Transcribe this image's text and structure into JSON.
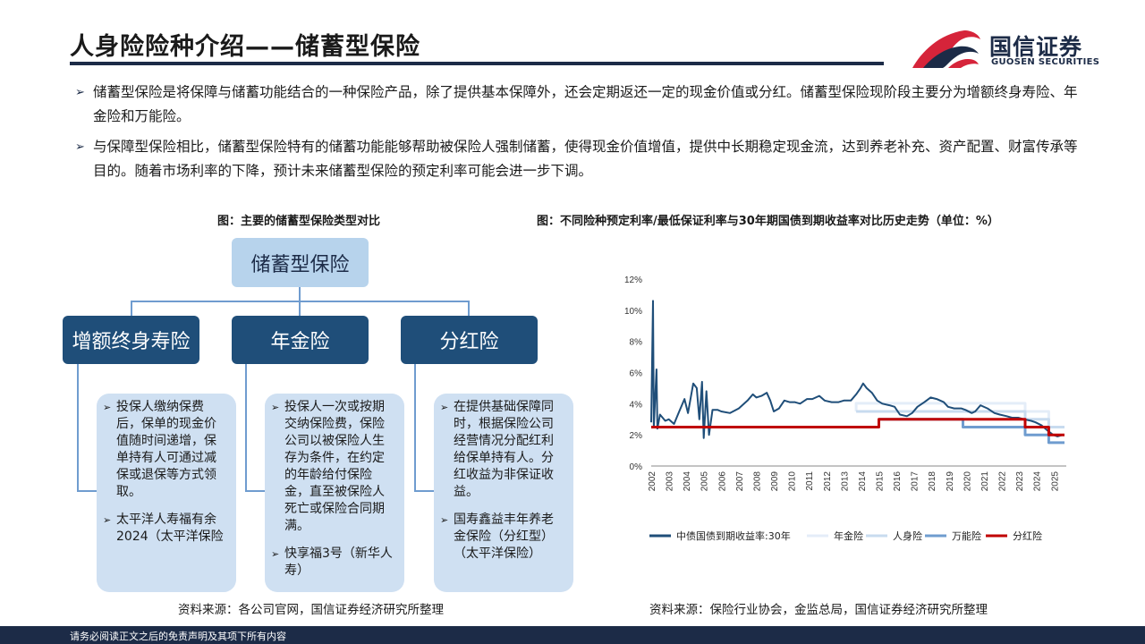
{
  "header": {
    "title": "人身险险种介绍——储蓄型保险",
    "logo_name": "国信证券",
    "logo_en": "GUOSEN SECURITIES"
  },
  "bullets": [
    "储蓄型保险是将保障与储蓄功能结合的一种保险产品，除了提供基本保障外，还会定期返还一定的现金价值或分红。储蓄型保险现阶段主要分为增额终身寿险、年金险和万能险。",
    "与保障型保险相比，储蓄型保险特有的储蓄功能能够帮助被保险人强制储蓄，使得现金价值增值，提供中长期稳定现金流，达到养老补充、资产配置、财富传承等目的。随着市场利率的下降，预计未来储蓄型保险的预定利率可能会进一步下调。"
  ],
  "left_figure": {
    "caption": "图：主要的储蓄型保险类型对比",
    "root": "储蓄型保险",
    "categories": [
      {
        "label": "增额终身寿险",
        "items": [
          "投保人缴纳保费后，保单的现金价值随时间递增，保单持有人可通过减保或退保等方式领取。",
          "太平洋人寿福有余2024（太平洋保险"
        ]
      },
      {
        "label": "年金险",
        "items": [
          "投保人一次或按期交纳保险费，保险公司以被保险人生存为条件，在约定的年龄给付保险金，直至被保险人死亡或保险合同期满。",
          "快享福3号（新华人寿）"
        ]
      },
      {
        "label": "分红险",
        "items": [
          "在提供基础保障同时，根据保险公司经营情况分配红利给保单持有人。分红收益为非保证收益。",
          "国寿鑫益丰年养老金保险（分红型）（太平洋保险）"
        ]
      }
    ],
    "source": "资料来源：各公司官网，国信证券经济研究所整理"
  },
  "right_figure": {
    "caption": "图：不同险种预定利率/最低保证利率与30年期国债到期收益率对比历史走势（单位：%）",
    "source": "资料来源：保险行业协会，金监总局，国信证券经济研究所整理"
  },
  "footer": {
    "disclaimer": "请务必阅读正文之后的免责声明及其项下所有内容"
  },
  "colors": {
    "navy": "#1c2b47",
    "brand_red": "#d6243a",
    "bond": "#1f4e79",
    "annuity": "#e4edf8",
    "life": "#c8dbef",
    "universal": "#6f9ccf",
    "dividend": "#c00000"
  },
  "chart_data": {
    "type": "line",
    "title": "",
    "xlabel": "",
    "ylabel": "",
    "x_ticks": [
      "2002",
      "2003",
      "2004",
      "2005",
      "2006",
      "2007",
      "2008",
      "2009",
      "2010",
      "2011",
      "2012",
      "2013",
      "2014",
      "2015",
      "2016",
      "2017",
      "2018",
      "2019",
      "2020",
      "2021",
      "2022",
      "2023",
      "2024",
      "2025"
    ],
    "y_ticks": [
      "0%",
      "2%",
      "4%",
      "6%",
      "8%",
      "10%",
      "12%"
    ],
    "ylim": [
      0,
      12
    ],
    "xlim": [
      2002,
      2025.7
    ],
    "legend_position": "bottom",
    "series": [
      {
        "name": "中债国债到期收益率:30年",
        "color": "#1f4e79",
        "points": [
          [
            2002.0,
            2.8
          ],
          [
            2002.1,
            10.6
          ],
          [
            2002.15,
            2.5
          ],
          [
            2002.3,
            6.2
          ],
          [
            2002.35,
            2.4
          ],
          [
            2002.5,
            3.3
          ],
          [
            2002.8,
            2.9
          ],
          [
            2003.0,
            3.0
          ],
          [
            2003.3,
            2.7
          ],
          [
            2003.6,
            3.5
          ],
          [
            2003.9,
            4.3
          ],
          [
            2004.1,
            3.4
          ],
          [
            2004.4,
            5.3
          ],
          [
            2004.6,
            5.0
          ],
          [
            2004.75,
            3.0
          ],
          [
            2004.9,
            5.4
          ],
          [
            2005.0,
            1.8
          ],
          [
            2005.15,
            4.8
          ],
          [
            2005.3,
            2.0
          ],
          [
            2005.5,
            3.6
          ],
          [
            2005.8,
            3.6
          ],
          [
            2006.0,
            3.5
          ],
          [
            2006.5,
            3.4
          ],
          [
            2007.0,
            3.7
          ],
          [
            2007.5,
            4.2
          ],
          [
            2007.8,
            4.6
          ],
          [
            2008.0,
            4.4
          ],
          [
            2008.3,
            4.5
          ],
          [
            2008.6,
            4.7
          ],
          [
            2008.8,
            4.2
          ],
          [
            2009.0,
            3.5
          ],
          [
            2009.3,
            3.7
          ],
          [
            2009.6,
            4.2
          ],
          [
            2009.9,
            4.1
          ],
          [
            2010.2,
            4.1
          ],
          [
            2010.5,
            4.0
          ],
          [
            2010.9,
            4.3
          ],
          [
            2011.2,
            4.3
          ],
          [
            2011.6,
            4.5
          ],
          [
            2011.9,
            4.2
          ],
          [
            2012.3,
            4.1
          ],
          [
            2012.7,
            4.1
          ],
          [
            2013.0,
            4.2
          ],
          [
            2013.4,
            4.2
          ],
          [
            2013.7,
            4.6
          ],
          [
            2013.95,
            5.0
          ],
          [
            2014.1,
            5.3
          ],
          [
            2014.3,
            5.0
          ],
          [
            2014.6,
            4.7
          ],
          [
            2014.9,
            4.2
          ],
          [
            2015.2,
            4.0
          ],
          [
            2015.6,
            3.9
          ],
          [
            2015.9,
            3.8
          ],
          [
            2016.2,
            3.3
          ],
          [
            2016.6,
            3.2
          ],
          [
            2016.9,
            3.4
          ],
          [
            2017.2,
            3.8
          ],
          [
            2017.6,
            4.1
          ],
          [
            2017.95,
            4.4
          ],
          [
            2018.3,
            4.3
          ],
          [
            2018.7,
            4.1
          ],
          [
            2018.95,
            3.8
          ],
          [
            2019.3,
            3.7
          ],
          [
            2019.7,
            3.7
          ],
          [
            2019.95,
            3.6
          ],
          [
            2020.3,
            3.4
          ],
          [
            2020.5,
            3.5
          ],
          [
            2020.8,
            3.9
          ],
          [
            2021.2,
            3.7
          ],
          [
            2021.6,
            3.4
          ],
          [
            2021.9,
            3.3
          ],
          [
            2022.3,
            3.2
          ],
          [
            2022.6,
            3.1
          ],
          [
            2022.95,
            3.1
          ],
          [
            2023.3,
            3.0
          ],
          [
            2023.7,
            2.9
          ],
          [
            2023.95,
            2.8
          ],
          [
            2024.3,
            2.6
          ],
          [
            2024.6,
            2.3
          ],
          [
            2024.95,
            2.0
          ],
          [
            2025.2,
            1.9
          ],
          [
            2025.5,
            2.0
          ]
        ]
      },
      {
        "name": "年金险",
        "color": "#e4edf8",
        "points": [
          [
            2013.7,
            3.5
          ],
          [
            2013.7,
            4.025
          ],
          [
            2023.35,
            4.025
          ],
          [
            2023.35,
            3.5
          ],
          [
            2024.7,
            3.5
          ],
          [
            2024.7,
            2.5
          ],
          [
            2025.6,
            2.5
          ]
        ]
      },
      {
        "name": "人身险",
        "color": "#c8dbef",
        "points": [
          [
            2013.7,
            3.5
          ],
          [
            2019.8,
            3.5
          ],
          [
            2023.35,
            3.5
          ],
          [
            2023.35,
            3.0
          ],
          [
            2024.7,
            3.0
          ],
          [
            2024.7,
            2.5
          ],
          [
            2025.6,
            2.5
          ]
        ]
      },
      {
        "name": "万能险",
        "color": "#6f9ccf",
        "points": [
          [
            2015.0,
            3.0
          ],
          [
            2019.8,
            3.0
          ],
          [
            2019.8,
            2.5
          ],
          [
            2023.35,
            2.5
          ],
          [
            2023.35,
            2.0
          ],
          [
            2024.7,
            2.0
          ],
          [
            2024.7,
            1.5
          ],
          [
            2025.6,
            1.5
          ]
        ]
      },
      {
        "name": "分红险",
        "color": "#c00000",
        "points": [
          [
            2002.0,
            2.5
          ],
          [
            2015.0,
            2.5
          ],
          [
            2015.0,
            3.0
          ],
          [
            2023.35,
            3.0
          ],
          [
            2023.35,
            2.5
          ],
          [
            2024.7,
            2.5
          ],
          [
            2024.7,
            2.0
          ],
          [
            2025.6,
            2.0
          ]
        ]
      }
    ]
  }
}
